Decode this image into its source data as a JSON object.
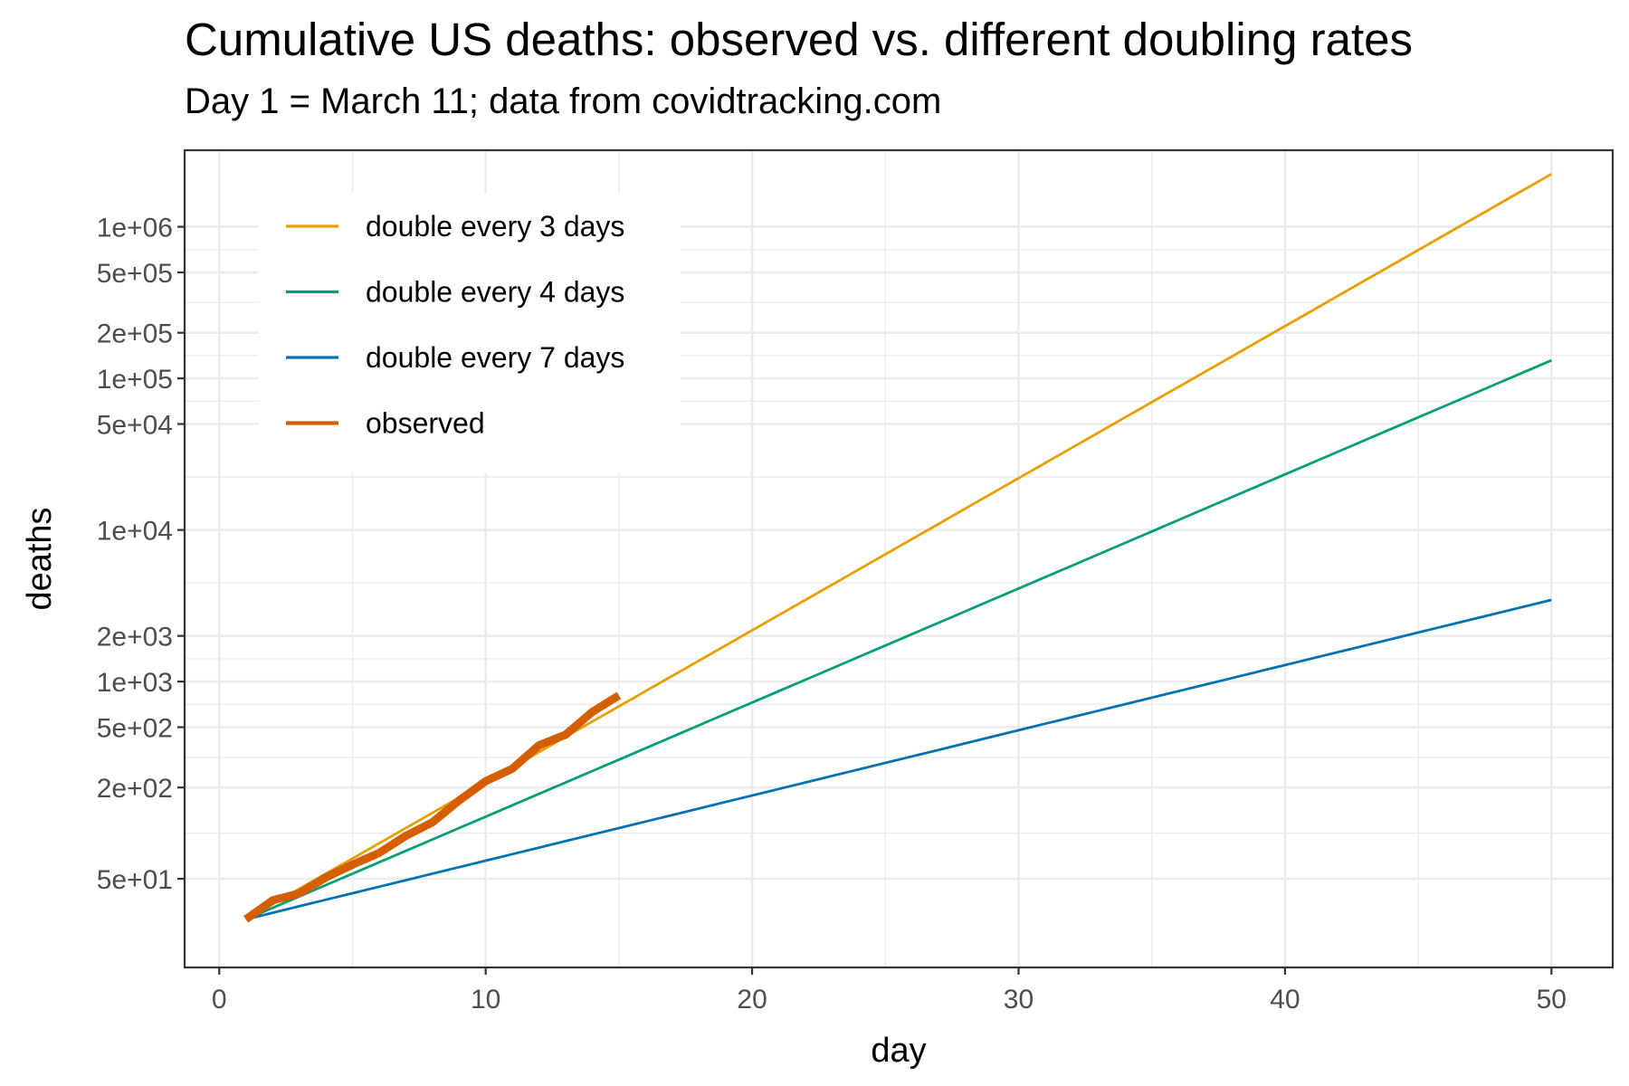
{
  "chart_data": {
    "type": "line",
    "title": "Cumulative US deaths: observed vs. different doubling rates",
    "subtitle": "Day 1 = March 11; data from covidtracking.com",
    "xlabel": "day",
    "ylabel": "deaths",
    "xlim": [
      -1.3,
      52.3
    ],
    "ylim": [
      13,
      3200000
    ],
    "yscale": "log10",
    "grid": true,
    "legend_position": "top-left",
    "x_ticks": [
      0,
      10,
      20,
      30,
      40,
      50
    ],
    "x_tick_labels": [
      "0",
      "10",
      "20",
      "30",
      "40",
      "50"
    ],
    "y_ticks": [
      50,
      200,
      500,
      1000,
      2000,
      10000,
      50000,
      100000,
      200000,
      500000,
      1000000
    ],
    "y_tick_labels": [
      "5e+01",
      "2e+02",
      "5e+02",
      "1e+03",
      "2e+03",
      "1e+04",
      "5e+04",
      "1e+05",
      "2e+05",
      "5e+05",
      "1e+06"
    ],
    "series": [
      {
        "name": "double every 3 days",
        "color": "#E69F00",
        "start_day": 1,
        "end_day": 50,
        "start_value": 27,
        "doubling_days": 3
      },
      {
        "name": "double every 4 days",
        "color": "#009E73",
        "start_day": 1,
        "end_day": 50,
        "start_value": 27,
        "doubling_days": 4
      },
      {
        "name": "double every 7 days",
        "color": "#0072B2",
        "start_day": 1,
        "end_day": 50,
        "start_value": 27,
        "doubling_days": 7
      },
      {
        "name": "observed",
        "color": "#D55E00",
        "x": [
          1,
          2,
          3,
          4,
          5,
          6,
          7,
          8,
          9,
          10,
          11,
          12,
          13,
          14,
          15
        ],
        "y": [
          27,
          36,
          40,
          51,
          62,
          74,
          96,
          118,
          164,
          220,
          266,
          380,
          446,
          630,
          810
        ]
      }
    ]
  }
}
